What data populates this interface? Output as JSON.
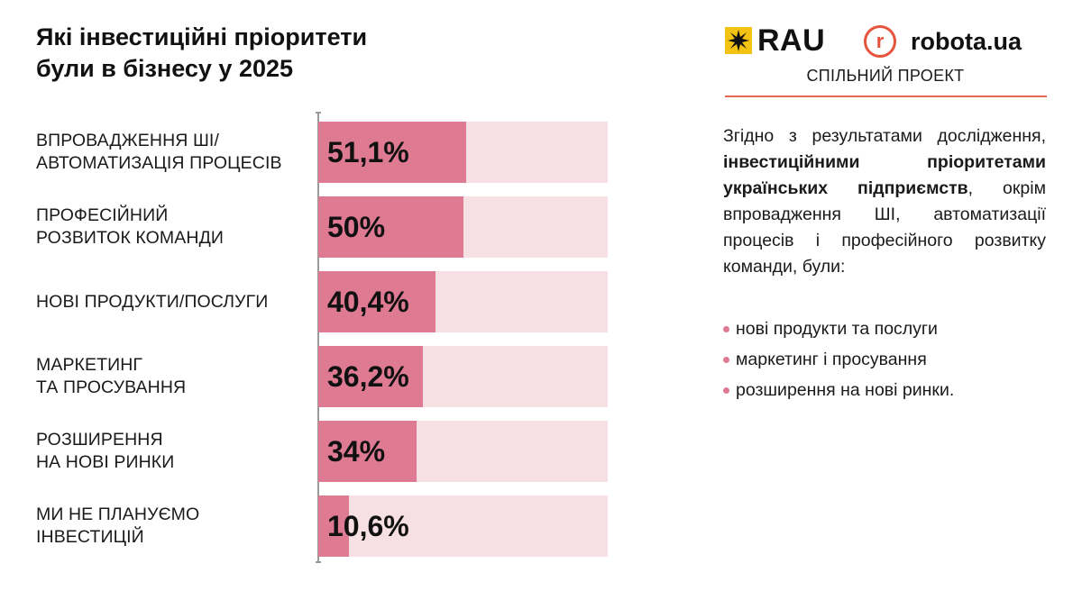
{
  "title": {
    "line1": "Які інвестиційні пріоритети",
    "line2": "були в бізнесу у 2025"
  },
  "logos": {
    "rau": "RAU",
    "robota": "robota.ua",
    "joint_project": "СПІЛЬНИЙ ПРОЕКТ"
  },
  "description": {
    "text1": "Згідно з результатами дослідження, ",
    "bold": "інвестиційними пріоритетами українських підприємств",
    "text2": ", окрім впровадження ШІ, автоматизації процесів і професійного розвитку команди, були:",
    "bullets": [
      "нові продукти та послуги",
      "маркетинг і просування",
      "розширення на нові ринки."
    ]
  },
  "colors": {
    "bar_fill": "#df7a93",
    "bar_track": "#f6e0e4",
    "accent_rule": "#e36a57",
    "rau_yellow": "#f3c313"
  },
  "chart_data": {
    "type": "bar",
    "orientation": "horizontal",
    "title": "Які інвестиційні пріоритети були в бізнесу у 2025",
    "categories": [
      [
        "ВПРОВАДЖЕННЯ ШІ/",
        "АВТОМАТИЗАЦІЯ ПРОЦЕСІВ"
      ],
      [
        "ПРОФЕСІЙНИЙ",
        "РОЗВИТОК КОМАНДИ"
      ],
      [
        "НОВІ ПРОДУКТИ/ПОСЛУГИ"
      ],
      [
        "МАРКЕТИНГ",
        "ТА ПРОСУВАННЯ"
      ],
      [
        "РОЗШИРЕННЯ",
        "НА НОВІ РИНКИ"
      ],
      [
        "МИ НЕ ПЛАНУЄМО",
        "ІНВЕСТИЦІЙ"
      ]
    ],
    "values": [
      51.1,
      50,
      40.4,
      36.2,
      34,
      10.6
    ],
    "value_labels": [
      "51,1%",
      "50%",
      "40,4%",
      "36,2%",
      "34%",
      "10,6%"
    ],
    "xlim": [
      0,
      100
    ],
    "grid": false,
    "legend": "none"
  }
}
